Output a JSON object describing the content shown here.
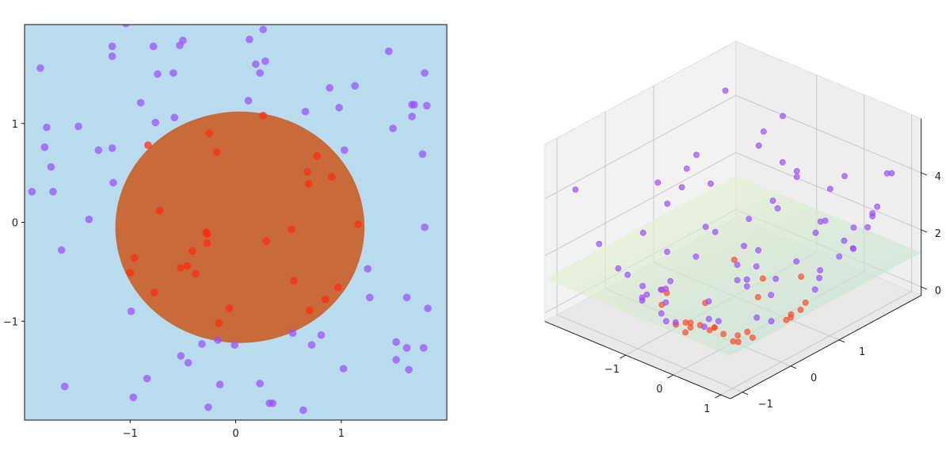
{
  "chart_data": [
    {
      "type": "scatter",
      "title": "",
      "xlabel": "",
      "ylabel": "",
      "xlim": [
        -2,
        2
      ],
      "ylim": [
        -2,
        2
      ],
      "xticks": [
        -1,
        0,
        1
      ],
      "yticks": [
        -1,
        0,
        1
      ],
      "xtick_labels": [
        "−1",
        "0",
        "1"
      ],
      "ytick_labels": [
        "−1",
        "0",
        "1"
      ],
      "grid": false,
      "background_region_color": "#b9dbee",
      "decision_region": {
        "shape": "ellipse",
        "center": [
          0.04,
          -0.05
        ],
        "radii": [
          1.18,
          1.17
        ],
        "color": "#c96a3a"
      },
      "series": [
        {
          "color": "#9b4dff",
          "points": [
            [
              -1.93,
              0.31
            ],
            [
              -1.85,
              1.56
            ],
            [
              -1.81,
              0.76
            ],
            [
              -1.79,
              0.96
            ],
            [
              -1.75,
              0.56
            ],
            [
              -1.73,
              0.31
            ],
            [
              -1.65,
              -0.28
            ],
            [
              -1.62,
              -1.66
            ],
            [
              -1.49,
              0.97
            ],
            [
              -1.39,
              0.03
            ],
            [
              -1.3,
              0.73
            ],
            [
              -1.17,
              1.78
            ],
            [
              -1.17,
              1.68
            ],
            [
              -1.17,
              0.75
            ],
            [
              -1.16,
              0.4
            ],
            [
              -0.99,
              -0.9
            ],
            [
              -0.97,
              -1.77
            ],
            [
              -0.9,
              1.21
            ],
            [
              -0.84,
              -1.58
            ],
            [
              -0.78,
              1.78
            ],
            [
              -0.76,
              1.01
            ],
            [
              -0.74,
              1.5
            ],
            [
              -0.59,
              1.51
            ],
            [
              -0.58,
              1.06
            ],
            [
              -0.53,
              1.79
            ],
            [
              -0.52,
              -1.35
            ],
            [
              -0.5,
              1.84
            ],
            [
              -0.45,
              -1.42
            ],
            [
              -0.32,
              -1.23
            ],
            [
              -0.26,
              -1.87
            ],
            [
              -0.17,
              -1.19
            ],
            [
              -0.15,
              -1.64
            ],
            [
              -0.01,
              -1.24
            ],
            [
              0.13,
              1.85
            ],
            [
              0.12,
              1.23
            ],
            [
              0.19,
              1.6
            ],
            [
              0.23,
              -1.63
            ],
            [
              0.23,
              1.51
            ],
            [
              0.26,
              1.95
            ],
            [
              0.28,
              1.63
            ],
            [
              0.32,
              -1.83
            ],
            [
              0.35,
              -1.83
            ],
            [
              0.64,
              -1.9
            ],
            [
              0.54,
              -1.12
            ],
            [
              0.66,
              1.12
            ],
            [
              0.72,
              -1.24
            ],
            [
              0.81,
              -1.14
            ],
            [
              0.89,
              1.36
            ],
            [
              0.98,
              1.16
            ],
            [
              1.02,
              -1.48
            ],
            [
              1.03,
              0.73
            ],
            [
              1.13,
              1.38
            ],
            [
              1.25,
              -0.47
            ],
            [
              1.27,
              -0.76
            ],
            [
              1.45,
              1.73
            ],
            [
              1.49,
              0.95
            ],
            [
              1.52,
              -1.21
            ],
            [
              1.52,
              -1.39
            ],
            [
              1.62,
              -1.27
            ],
            [
              1.62,
              -0.76
            ],
            [
              1.64,
              -1.49
            ],
            [
              1.67,
              1.19
            ],
            [
              1.67,
              1.07
            ],
            [
              1.69,
              1.19
            ],
            [
              1.77,
              0.69
            ],
            [
              1.78,
              -1.27
            ],
            [
              1.79,
              -0.05
            ],
            [
              1.79,
              1.51
            ],
            [
              1.81,
              1.18
            ],
            [
              1.82,
              -0.87
            ],
            [
              -1.04,
              2.01
            ]
          ]
        },
        {
          "color": "#ff2a10",
          "points": [
            [
              -1.0,
              -0.51
            ],
            [
              -0.96,
              -0.36
            ],
            [
              -0.77,
              -0.71
            ],
            [
              -0.72,
              0.12
            ],
            [
              -0.83,
              0.78
            ],
            [
              -0.52,
              -0.46
            ],
            [
              -0.46,
              -0.44
            ],
            [
              -0.41,
              -0.29
            ],
            [
              -0.38,
              -0.52
            ],
            [
              -0.28,
              -0.1
            ],
            [
              -0.27,
              -0.12
            ],
            [
              -0.27,
              -0.21
            ],
            [
              -0.25,
              0.9
            ],
            [
              -0.18,
              0.71
            ],
            [
              -0.16,
              -1.02
            ],
            [
              -0.06,
              -0.87
            ],
            [
              0.26,
              1.08
            ],
            [
              0.29,
              -0.19
            ],
            [
              0.53,
              -0.07
            ],
            [
              0.55,
              -0.59
            ],
            [
              0.68,
              0.51
            ],
            [
              0.69,
              0.39
            ],
            [
              0.7,
              -0.89
            ],
            [
              0.77,
              0.67
            ],
            [
              0.85,
              -0.78
            ],
            [
              0.91,
              0.46
            ],
            [
              0.97,
              -0.66
            ],
            [
              1.16,
              -0.02
            ]
          ]
        }
      ]
    },
    {
      "type": "scatter",
      "projection": "3d",
      "title": "",
      "xlabel": "",
      "ylabel": "",
      "zlabel": "",
      "xticks": [
        -1,
        0,
        1
      ],
      "yticks": [
        -1,
        0,
        1
      ],
      "zticks": [
        0,
        2,
        4
      ],
      "xtick_labels": [
        "−1",
        "0",
        "1"
      ],
      "ytick_labels": [
        "−1",
        "0",
        "1"
      ],
      "ztick_labels": [
        "0",
        "2",
        "4"
      ],
      "grid": true,
      "plane": {
        "z": 1.2,
        "color_low": "#b7ddd6",
        "color_high": "#f2f8c8",
        "opacity": 0.6
      },
      "series": [
        {
          "color": "#9b4dff",
          "points": [
            [
              -1.9,
              0.3,
              3.7
            ],
            [
              -1.8,
              1.6,
              5.8
            ],
            [
              -1.8,
              0.8,
              3.8
            ],
            [
              -1.8,
              1.0,
              4.1
            ],
            [
              -1.7,
              0.6,
              3.4
            ],
            [
              -1.7,
              0.3,
              3.1
            ],
            [
              -1.6,
              -0.3,
              2.7
            ],
            [
              -1.6,
              -1.7,
              5.5
            ],
            [
              -1.5,
              1.0,
              3.3
            ],
            [
              -1.4,
              0.0,
              1.9
            ],
            [
              -1.3,
              0.7,
              2.2
            ],
            [
              -1.2,
              1.8,
              4.6
            ],
            [
              -1.2,
              1.7,
              4.2
            ],
            [
              -1.2,
              0.8,
              2.0
            ],
            [
              -1.2,
              0.4,
              1.5
            ],
            [
              -1.0,
              -0.9,
              1.8
            ],
            [
              -1.0,
              -1.8,
              4.1
            ],
            [
              -0.9,
              1.2,
              2.3
            ],
            [
              -0.8,
              -1.6,
              3.2
            ],
            [
              -0.8,
              1.8,
              3.8
            ],
            [
              -0.8,
              1.0,
              1.6
            ],
            [
              -0.7,
              1.5,
              2.8
            ],
            [
              -0.6,
              1.5,
              2.6
            ],
            [
              -0.6,
              1.1,
              1.5
            ],
            [
              -0.5,
              1.8,
              3.5
            ],
            [
              -0.5,
              -1.4,
              2.1
            ],
            [
              -0.5,
              1.8,
              3.7
            ],
            [
              -0.5,
              -1.4,
              2.2
            ],
            [
              -0.3,
              -1.2,
              1.6
            ],
            [
              -0.3,
              -1.9,
              3.6
            ],
            [
              -0.2,
              -1.2,
              1.4
            ],
            [
              -0.2,
              -1.6,
              2.7
            ],
            [
              0.0,
              -1.2,
              1.5
            ],
            [
              0.1,
              1.9,
              3.4
            ],
            [
              0.1,
              1.2,
              1.5
            ],
            [
              0.2,
              1.6,
              2.6
            ],
            [
              0.2,
              -1.6,
              2.7
            ],
            [
              0.2,
              1.5,
              2.3
            ],
            [
              0.3,
              2.0,
              3.9
            ],
            [
              0.3,
              1.6,
              2.7
            ],
            [
              0.3,
              -1.8,
              3.4
            ],
            [
              0.4,
              -1.8,
              3.5
            ],
            [
              0.6,
              -1.9,
              4.0
            ],
            [
              0.5,
              -1.1,
              1.6
            ],
            [
              0.7,
              1.1,
              1.7
            ],
            [
              0.7,
              -1.2,
              2.1
            ],
            [
              0.8,
              -1.1,
              2.0
            ],
            [
              0.9,
              1.4,
              2.6
            ],
            [
              1.0,
              1.2,
              2.3
            ],
            [
              1.0,
              -1.5,
              3.2
            ],
            [
              1.0,
              0.7,
              1.6
            ],
            [
              1.1,
              1.4,
              3.2
            ],
            [
              1.3,
              -0.5,
              1.8
            ],
            [
              1.3,
              -0.8,
              2.2
            ],
            [
              1.5,
              1.7,
              5.1
            ],
            [
              1.5,
              1.0,
              3.1
            ],
            [
              1.5,
              -1.2,
              3.8
            ],
            [
              1.5,
              -1.4,
              4.2
            ],
            [
              1.6,
              -1.3,
              4.2
            ],
            [
              1.6,
              -0.8,
              3.2
            ],
            [
              1.6,
              -1.5,
              4.9
            ],
            [
              1.7,
              1.2,
              4.2
            ],
            [
              1.7,
              1.1,
              3.9
            ],
            [
              1.7,
              1.2,
              4.3
            ],
            [
              1.8,
              0.7,
              3.6
            ],
            [
              1.8,
              -1.3,
              4.8
            ],
            [
              1.8,
              0.0,
              3.2
            ],
            [
              1.8,
              1.5,
              5.5
            ],
            [
              1.8,
              1.2,
              4.6
            ],
            [
              1.8,
              -0.9,
              4.0
            ],
            [
              -1.0,
              2.0,
              5.1
            ]
          ]
        },
        {
          "color": "#ff4a2a",
          "points": [
            [
              -1.0,
              -0.5,
              1.3
            ],
            [
              -1.0,
              -0.4,
              1.1
            ],
            [
              -0.8,
              -0.7,
              1.1
            ],
            [
              -0.7,
              0.1,
              0.5
            ],
            [
              -0.8,
              0.8,
              1.3
            ],
            [
              -0.5,
              -0.5,
              0.5
            ],
            [
              -0.5,
              -0.4,
              0.4
            ],
            [
              -0.4,
              -0.3,
              0.3
            ],
            [
              -0.4,
              -0.5,
              0.4
            ],
            [
              -0.3,
              -0.1,
              0.1
            ],
            [
              -0.3,
              -0.1,
              0.1
            ],
            [
              -0.3,
              -0.2,
              0.1
            ],
            [
              -0.3,
              0.9,
              0.9
            ],
            [
              -0.2,
              0.7,
              0.5
            ],
            [
              -0.2,
              -1.0,
              1.1
            ],
            [
              -0.1,
              -0.9,
              0.8
            ],
            [
              0.3,
              1.1,
              1.2
            ],
            [
              0.3,
              -0.2,
              0.1
            ],
            [
              0.5,
              -0.1,
              0.3
            ],
            [
              0.6,
              -0.6,
              0.7
            ],
            [
              0.7,
              0.5,
              0.7
            ],
            [
              0.7,
              0.4,
              0.6
            ],
            [
              0.7,
              -0.9,
              1.3
            ],
            [
              0.8,
              0.7,
              1.0
            ],
            [
              0.9,
              -0.8,
              1.3
            ],
            [
              0.9,
              0.5,
              1.0
            ],
            [
              1.0,
              -0.7,
              1.4
            ],
            [
              1.2,
              0.0,
              1.4
            ]
          ]
        }
      ]
    }
  ]
}
